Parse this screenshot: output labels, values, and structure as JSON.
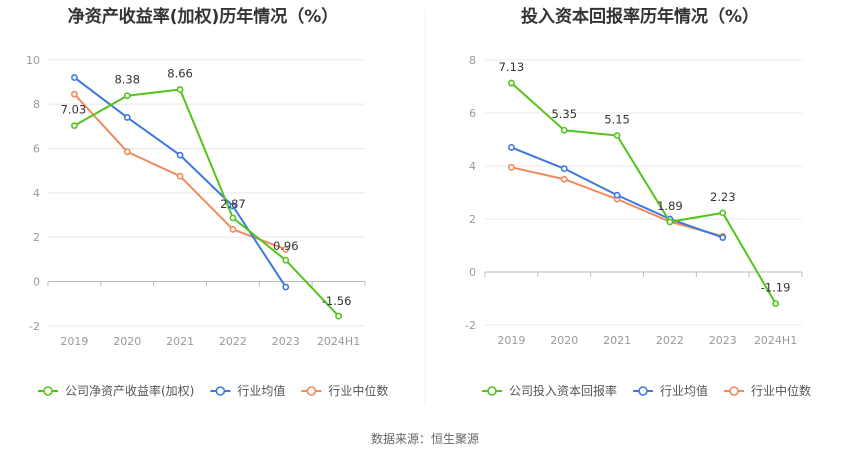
{
  "source": "数据来源：恒生聚源",
  "colors": {
    "company": "#52c41a",
    "avg": "#3d78e0",
    "median": "#f0895c",
    "grid": "#e8e8e8",
    "axis": "#bbbbbb"
  },
  "chart_data": [
    {
      "type": "line",
      "title": "净资产收益率(加权)历年情况（%）",
      "categories": [
        "2019",
        "2020",
        "2021",
        "2022",
        "2023",
        "2024H1"
      ],
      "ylim": [
        -2,
        10
      ],
      "yticks": [
        "-2",
        "0",
        "2",
        "4",
        "6",
        "8",
        "10"
      ],
      "series": [
        {
          "name": "公司净资产收益率(加权)",
          "values": [
            7.03,
            8.38,
            8.66,
            2.87,
            0.96,
            -1.56
          ],
          "labels": [
            "7.03",
            "8.38",
            "8.66",
            "2.87",
            "0.96",
            "-1.56"
          ]
        },
        {
          "name": "行业均值",
          "values": [
            9.2,
            7.4,
            5.7,
            3.4,
            -0.25,
            null
          ]
        },
        {
          "name": "行业中位数",
          "values": [
            8.45,
            5.85,
            4.75,
            2.35,
            1.45,
            null
          ]
        }
      ]
    },
    {
      "type": "line",
      "title": "投入资本回报率历年情况（%）",
      "categories": [
        "2019",
        "2020",
        "2021",
        "2022",
        "2023",
        "2024H1"
      ],
      "ylim": [
        -2,
        8
      ],
      "yticks": [
        "-2",
        "0",
        "2",
        "4",
        "6",
        "8"
      ],
      "series": [
        {
          "name": "公司投入资本回报率",
          "values": [
            7.13,
            5.35,
            5.15,
            1.89,
            2.23,
            -1.19
          ],
          "labels": [
            "7.13",
            "5.35",
            "5.15",
            "1.89",
            "2.23",
            "-1.19"
          ]
        },
        {
          "name": "行业均值",
          "values": [
            4.7,
            3.9,
            2.9,
            2.0,
            1.3,
            null
          ]
        },
        {
          "name": "行业中位数",
          "values": [
            3.95,
            3.5,
            2.75,
            1.9,
            1.35,
            null
          ]
        }
      ]
    }
  ]
}
